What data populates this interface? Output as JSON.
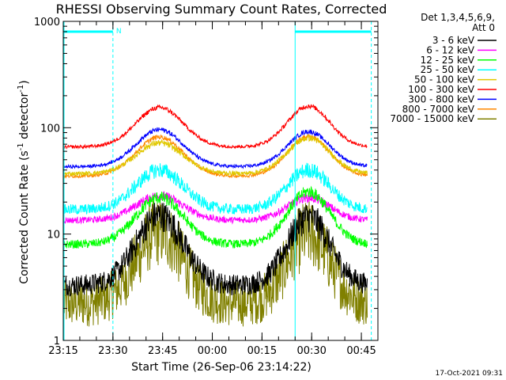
{
  "chart_data": {
    "type": "line",
    "title": "RHESSI Observing Summary Count Rates, Corrected",
    "xlabel": "Start Time (26-Sep-06 23:14:22)",
    "ylabel": "Corrected Count Rate (s-1 detector-1)",
    "ylabel_parts": {
      "main": "Corrected Count Rate (s",
      "exp1": "-1",
      "mid": " detector",
      "exp2": "-1",
      "end": ")"
    },
    "yscale": "log",
    "ylim": [
      1,
      1000
    ],
    "xlim_minutes": [
      0,
      95
    ],
    "x_ticks": [
      {
        "m": 0,
        "label": "23:15"
      },
      {
        "m": 15,
        "label": "23:30"
      },
      {
        "m": 30,
        "label": "23:45"
      },
      {
        "m": 45,
        "label": "00:00"
      },
      {
        "m": 60,
        "label": "00:15"
      },
      {
        "m": 75,
        "label": "00:30"
      },
      {
        "m": 90,
        "label": "00:45"
      }
    ],
    "y_ticks": [
      {
        "v": 1,
        "label": "1"
      },
      {
        "v": 10,
        "label": "10"
      },
      {
        "v": 100,
        "label": "100"
      },
      {
        "v": 1000,
        "label": "1000"
      }
    ],
    "legend_header": [
      "Det 1,3,4,5,6,9,",
      "Att 0"
    ],
    "series": [
      {
        "name": "3 - 6 keV",
        "color": "#000000",
        "base": 3.3,
        "peak1": 15,
        "peak2": 14.5,
        "noise": 0.1
      },
      {
        "name": "6 - 12 keV",
        "color": "#ff00ff",
        "base": 13.5,
        "peak1": 23,
        "peak2": 22,
        "noise": 0.03
      },
      {
        "name": "12 - 25 keV",
        "color": "#00ff00",
        "base": 8,
        "peak1": 22,
        "peak2": 25,
        "noise": 0.04
      },
      {
        "name": "25 - 50 keV",
        "color": "#00ffff",
        "base": 17,
        "peak1": 40,
        "peak2": 40,
        "noise": 0.05
      },
      {
        "name": "50 - 100 keV",
        "color": "#e0c800",
        "base": 37,
        "peak1": 72,
        "peak2": 80,
        "noise": 0.02
      },
      {
        "name": "100 - 300 keV",
        "color": "#ff0000",
        "base": 66,
        "peak1": 155,
        "peak2": 160,
        "noise": 0.015
      },
      {
        "name": "300 - 800 keV",
        "color": "#0000ff",
        "base": 43,
        "peak1": 96,
        "peak2": 92,
        "noise": 0.015
      },
      {
        "name": "800 - 7000 keV",
        "color": "#ff8800",
        "base": 35,
        "peak1": 82,
        "peak2": 83,
        "noise": 0.015
      },
      {
        "name": "7000 - 15000 keV",
        "color": "#808000",
        "base": 2.2,
        "peak1": 10.5,
        "peak2": 10,
        "noise": 0.22
      }
    ],
    "peak_centers_minutes": [
      29,
      74
    ],
    "annotations": {
      "vertical_lines_minutes": [
        0,
        15,
        70,
        93
      ],
      "solid_lines_minutes": [
        0,
        70
      ],
      "dashed_lines_minutes": [
        15,
        93
      ],
      "bar_segments_minutes": [
        [
          0,
          15
        ],
        [
          70,
          93
        ]
      ],
      "bar_level": 800,
      "bar_label": "N",
      "line_color": "#00ffff"
    },
    "timestamp": "17-Oct-2021 09:31"
  }
}
